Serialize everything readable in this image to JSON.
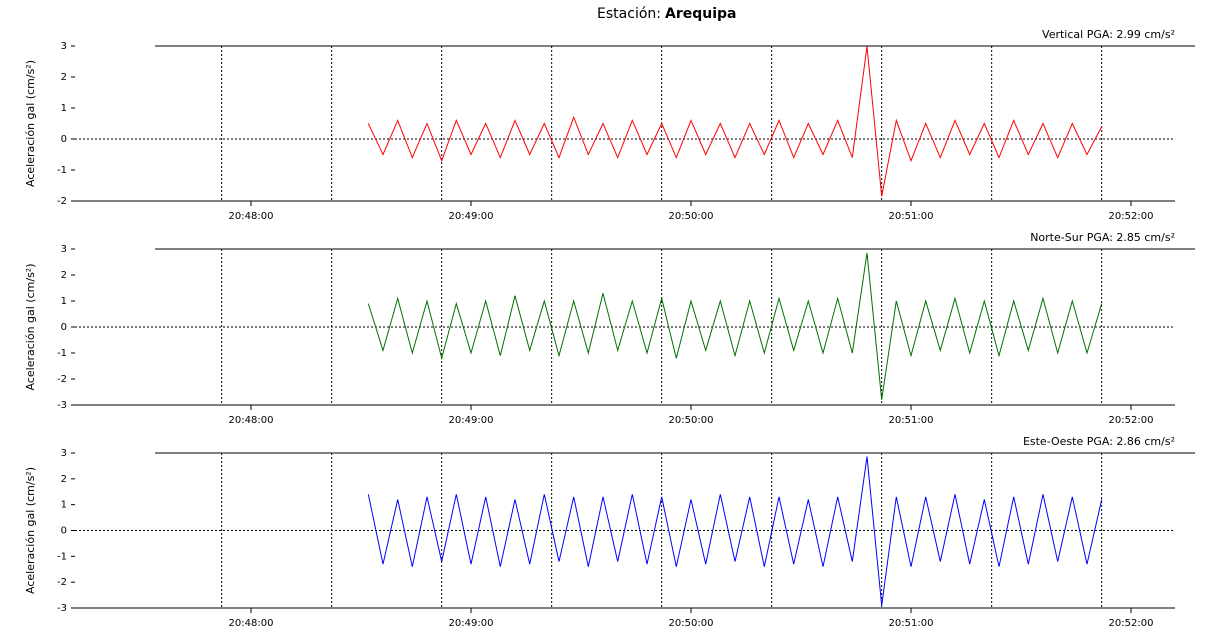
{
  "header": {
    "label": "Estación:",
    "station": "Arequipa"
  },
  "chart_data": [
    {
      "type": "line",
      "annotation": "Vertical PGA: 2.99 cm/s²",
      "y_label": "Aceleración gal (cm/s²)",
      "color": "#ff0000",
      "xlim": [
        "20:47:12",
        "20:52:12"
      ],
      "xticks": [
        "20:48:00",
        "20:49:00",
        "20:50:00",
        "20:51:00",
        "20:52:00"
      ],
      "xgrid": [
        "20:47:52",
        "20:48:22",
        "20:48:52",
        "20:49:22",
        "20:49:52",
        "20:50:22",
        "20:50:52",
        "20:51:22",
        "20:51:52"
      ],
      "ylim": [
        -2,
        3
      ],
      "yticks": [
        -2,
        -1,
        0,
        1,
        2,
        3
      ],
      "x": [
        "20:48:32",
        "20:48:36",
        "20:48:40",
        "20:48:44",
        "20:48:48",
        "20:48:52",
        "20:48:56",
        "20:49:00",
        "20:49:04",
        "20:49:08",
        "20:49:12",
        "20:49:16",
        "20:49:20",
        "20:49:24",
        "20:49:28",
        "20:49:32",
        "20:49:36",
        "20:49:40",
        "20:49:44",
        "20:49:48",
        "20:49:52",
        "20:49:56",
        "20:50:00",
        "20:50:04",
        "20:50:08",
        "20:50:12",
        "20:50:16",
        "20:50:20",
        "20:50:24",
        "20:50:28",
        "20:50:32",
        "20:50:36",
        "20:50:40",
        "20:50:44",
        "20:50:48",
        "20:50:52",
        "20:50:56",
        "20:51:00",
        "20:51:04",
        "20:51:08",
        "20:51:12",
        "20:51:16",
        "20:51:20",
        "20:51:24",
        "20:51:28",
        "20:51:32",
        "20:51:36",
        "20:51:40",
        "20:51:44",
        "20:51:48",
        "20:51:52"
      ],
      "values": [
        0.5,
        -0.5,
        0.6,
        -0.6,
        0.5,
        -0.7,
        0.6,
        -0.5,
        0.5,
        -0.6,
        0.6,
        -0.5,
        0.5,
        -0.6,
        0.7,
        -0.5,
        0.5,
        -0.6,
        0.6,
        -0.5,
        0.5,
        -0.6,
        0.6,
        -0.5,
        0.5,
        -0.6,
        0.5,
        -0.5,
        0.6,
        -0.6,
        0.5,
        -0.5,
        0.6,
        -0.6,
        2.99,
        -1.85,
        0.6,
        -0.7,
        0.5,
        -0.6,
        0.6,
        -0.5,
        0.5,
        -0.6,
        0.6,
        -0.5,
        0.5,
        -0.6,
        0.5,
        -0.5,
        0.4
      ]
    },
    {
      "type": "line",
      "annotation": "Norte-Sur PGA: 2.85 cm/s²",
      "y_label": "Aceleración gal (cm/s²)",
      "color": "#007000",
      "xlim": [
        "20:47:12",
        "20:52:12"
      ],
      "xticks": [
        "20:48:00",
        "20:49:00",
        "20:50:00",
        "20:51:00",
        "20:52:00"
      ],
      "xgrid": [
        "20:47:52",
        "20:48:22",
        "20:48:52",
        "20:49:22",
        "20:49:52",
        "20:50:22",
        "20:50:52",
        "20:51:22",
        "20:51:52"
      ],
      "ylim": [
        -3,
        3
      ],
      "yticks": [
        -3,
        -2,
        -1,
        0,
        1,
        2,
        3
      ],
      "x": [
        "20:48:32",
        "20:48:36",
        "20:48:40",
        "20:48:44",
        "20:48:48",
        "20:48:52",
        "20:48:56",
        "20:49:00",
        "20:49:04",
        "20:49:08",
        "20:49:12",
        "20:49:16",
        "20:49:20",
        "20:49:24",
        "20:49:28",
        "20:49:32",
        "20:49:36",
        "20:49:40",
        "20:49:44",
        "20:49:48",
        "20:49:52",
        "20:49:56",
        "20:50:00",
        "20:50:04",
        "20:50:08",
        "20:50:12",
        "20:50:16",
        "20:50:20",
        "20:50:24",
        "20:50:28",
        "20:50:32",
        "20:50:36",
        "20:50:40",
        "20:50:44",
        "20:50:48",
        "20:50:52",
        "20:50:56",
        "20:51:00",
        "20:51:04",
        "20:51:08",
        "20:51:12",
        "20:51:16",
        "20:51:20",
        "20:51:24",
        "20:51:28",
        "20:51:32",
        "20:51:36",
        "20:51:40",
        "20:51:44",
        "20:51:48",
        "20:51:52"
      ],
      "values": [
        0.9,
        -0.9,
        1.1,
        -1.0,
        1.0,
        -1.2,
        0.9,
        -1.0,
        1.0,
        -1.1,
        1.2,
        -0.9,
        1.0,
        -1.1,
        1.0,
        -1.0,
        1.3,
        -0.9,
        1.0,
        -1.0,
        1.1,
        -1.2,
        1.0,
        -0.9,
        1.0,
        -1.1,
        1.0,
        -1.0,
        1.1,
        -0.9,
        1.0,
        -1.0,
        1.1,
        -1.0,
        2.85,
        -2.8,
        1.0,
        -1.1,
        1.0,
        -0.9,
        1.1,
        -1.0,
        1.0,
        -1.1,
        1.0,
        -0.9,
        1.1,
        -1.0,
        1.0,
        -1.0,
        0.9
      ]
    },
    {
      "type": "line",
      "annotation": "Este-Oeste PGA: 2.86 cm/s²",
      "y_label": "Aceleración gal (cm/s²)",
      "color": "#0000ff",
      "xlim": [
        "20:47:12",
        "20:52:12"
      ],
      "xticks": [
        "20:48:00",
        "20:49:00",
        "20:50:00",
        "20:51:00",
        "20:52:00"
      ],
      "xgrid": [
        "20:47:52",
        "20:48:22",
        "20:48:52",
        "20:49:22",
        "20:49:52",
        "20:50:22",
        "20:50:52",
        "20:51:22",
        "20:51:52"
      ],
      "ylim": [
        -3,
        3
      ],
      "yticks": [
        -3,
        -2,
        -1,
        0,
        1,
        2,
        3
      ],
      "x": [
        "20:48:32",
        "20:48:36",
        "20:48:40",
        "20:48:44",
        "20:48:48",
        "20:48:52",
        "20:48:56",
        "20:49:00",
        "20:49:04",
        "20:49:08",
        "20:49:12",
        "20:49:16",
        "20:49:20",
        "20:49:24",
        "20:49:28",
        "20:49:32",
        "20:49:36",
        "20:49:40",
        "20:49:44",
        "20:49:48",
        "20:49:52",
        "20:49:56",
        "20:50:00",
        "20:50:04",
        "20:50:08",
        "20:50:12",
        "20:50:16",
        "20:50:20",
        "20:50:24",
        "20:50:28",
        "20:50:32",
        "20:50:36",
        "20:50:40",
        "20:50:44",
        "20:50:48",
        "20:50:52",
        "20:50:56",
        "20:51:00",
        "20:51:04",
        "20:51:08",
        "20:51:12",
        "20:51:16",
        "20:51:20",
        "20:51:24",
        "20:51:28",
        "20:51:32",
        "20:51:36",
        "20:51:40",
        "20:51:44",
        "20:51:48",
        "20:51:52"
      ],
      "values": [
        1.4,
        -1.3,
        1.2,
        -1.4,
        1.3,
        -1.2,
        1.4,
        -1.3,
        1.3,
        -1.4,
        1.2,
        -1.3,
        1.4,
        -1.2,
        1.3,
        -1.4,
        1.3,
        -1.2,
        1.4,
        -1.3,
        1.3,
        -1.4,
        1.2,
        -1.3,
        1.4,
        -1.2,
        1.3,
        -1.4,
        1.3,
        -1.3,
        1.2,
        -1.4,
        1.3,
        -1.2,
        2.86,
        -2.9,
        1.3,
        -1.4,
        1.3,
        -1.2,
        1.4,
        -1.3,
        1.2,
        -1.4,
        1.3,
        -1.3,
        1.4,
        -1.2,
        1.3,
        -1.3,
        1.2
      ]
    }
  ]
}
